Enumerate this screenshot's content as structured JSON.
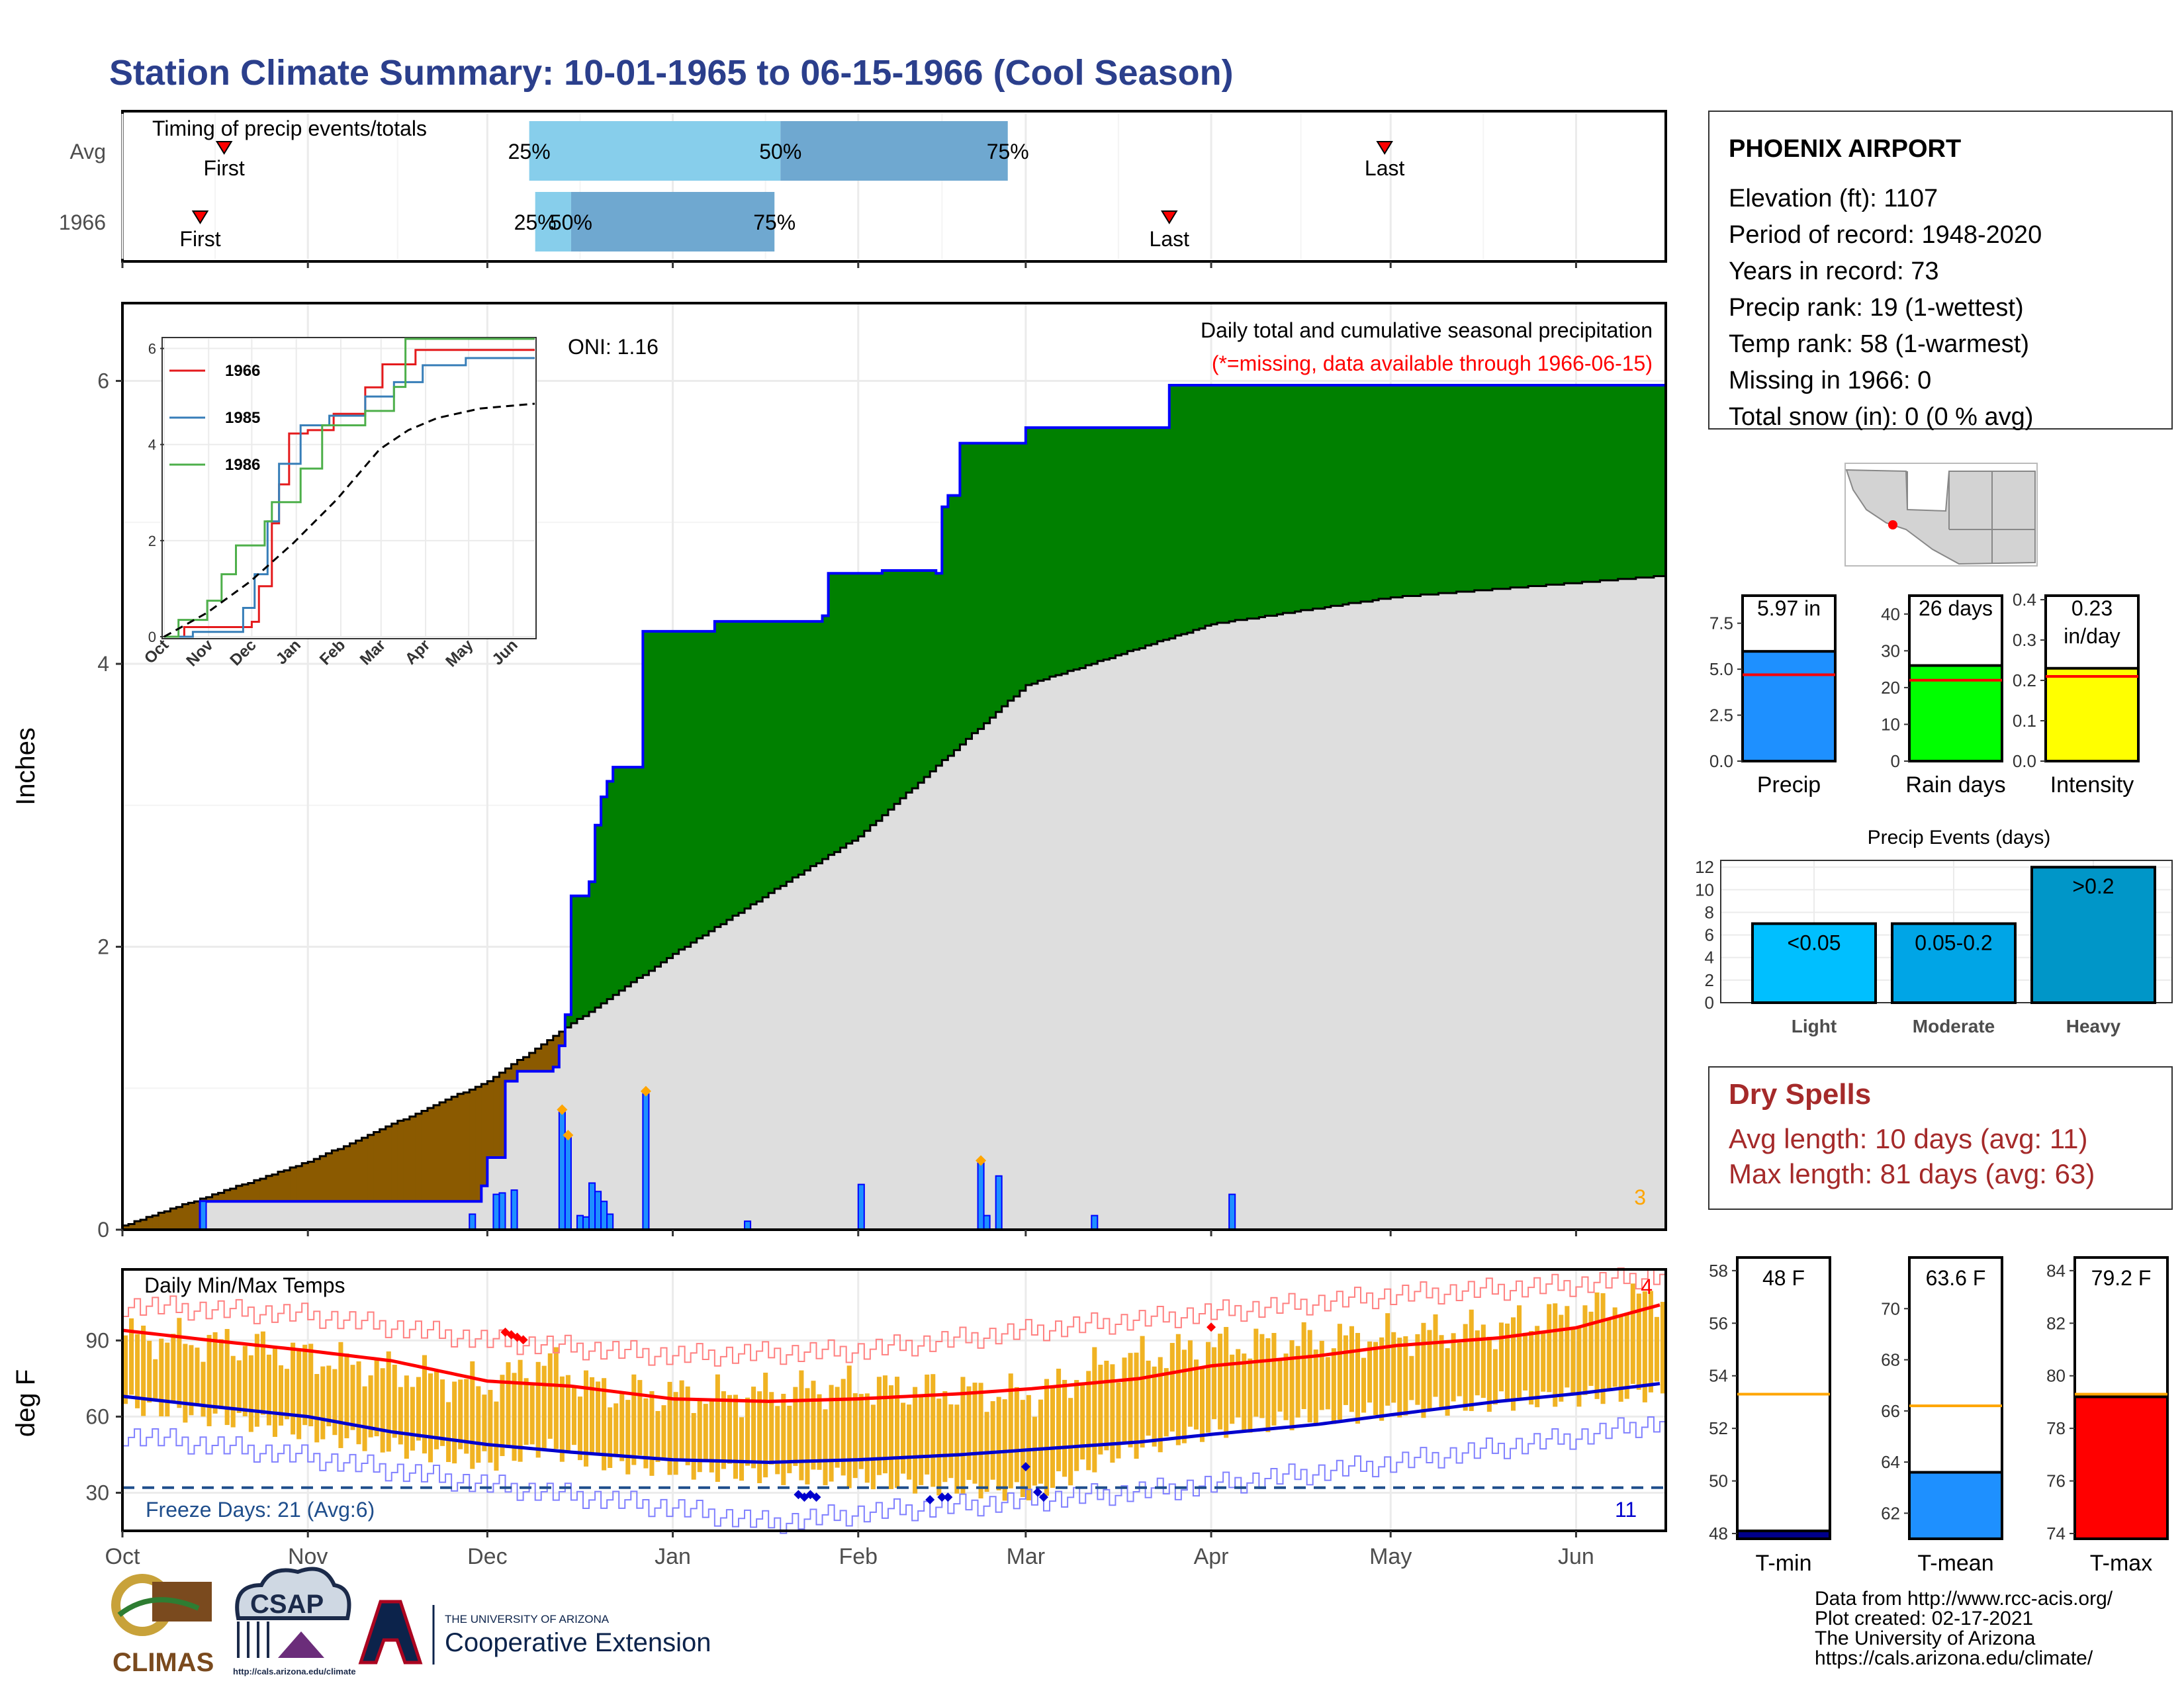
{
  "title": "Station Climate Summary: 10-01-1965 to 06-15-1966 (Cool Season)",
  "timing": {
    "heading": "Timing of precip events/totals",
    "row_labels": [
      "Avg",
      "1966"
    ],
    "first_label": "First",
    "last_label": "Last",
    "pct_labels": [
      "25%",
      "50%",
      "75%"
    ],
    "avg": {
      "first": "1965-10-18",
      "p25": "1965-12-08",
      "p50": "1966-01-19",
      "p75": "1966-02-26",
      "last": "1966-04-30"
    },
    "y1966": {
      "first": "1965-10-14",
      "p25": "1965-12-09",
      "p50": "1965-12-15",
      "p75": "1966-01-18",
      "last": "1966-03-25"
    }
  },
  "main": {
    "ylabel": "Inches",
    "oni": "ONI: 1.16",
    "note1": "Daily total and cumulative seasonal precipitation",
    "note2": "(*=missing, data available through 1966-06-15)",
    "corner_count": "3",
    "y_ticks": [
      "0",
      "2",
      "4",
      "6"
    ]
  },
  "inset": {
    "legend": [
      "1966",
      "1985",
      "1986"
    ],
    "colors": [
      "#e41a1c",
      "#377eb8",
      "#4daf4a"
    ],
    "months": [
      "Oct",
      "Nov",
      "Dec",
      "Jan",
      "Feb",
      "Mar",
      "Apr",
      "May",
      "Jun"
    ],
    "y_ticks": [
      "0",
      "2",
      "4",
      "6"
    ]
  },
  "temps": {
    "heading": "Daily Min/Max Temps",
    "ylabel": "deg F",
    "y_ticks": [
      "30",
      "60",
      "90"
    ],
    "freeze": "Freeze Days: 21 (Avg:6)",
    "max_count": "4",
    "min_count": "11",
    "months": [
      "Oct",
      "Nov",
      "Dec",
      "Jan",
      "Feb",
      "Mar",
      "Apr",
      "May",
      "Jun"
    ]
  },
  "station": {
    "name": "PHOENIX AIRPORT",
    "lines": [
      "Elevation (ft): 1107",
      "Period of record: 1948-2020",
      "Years in record: 73",
      "Precip rank: 19 (1-wettest)",
      "Temp rank: 58 (1-warmest)",
      "Missing in 1966: 0",
      "Total snow (in): 0 (0 % avg)"
    ]
  },
  "summary_bars": [
    {
      "label": "Precip",
      "value_text": "5.97 in",
      "value": 5.97,
      "avg": 4.7,
      "ymax": 9,
      "ticks": [
        "0.0",
        "2.5",
        "5.0",
        "7.5"
      ],
      "tick_vals": [
        0,
        2.5,
        5,
        7.5
      ],
      "color": "#1e90ff"
    },
    {
      "label": "Rain days",
      "value_text": "26 days",
      "value": 26,
      "avg": 22,
      "ymax": 45,
      "ticks": [
        "0",
        "10",
        "20",
        "30",
        "40"
      ],
      "tick_vals": [
        0,
        10,
        20,
        30,
        40
      ],
      "color": "#00ff00"
    },
    {
      "label": "Intensity",
      "value_text": "0.23",
      "value_text2": "in/day",
      "value": 0.23,
      "avg": 0.21,
      "ymax": 0.41,
      "ticks": [
        "0.0",
        "0.1",
        "0.2",
        "0.3",
        "0.4"
      ],
      "tick_vals": [
        0,
        0.1,
        0.2,
        0.3,
        0.4
      ],
      "color": "#ffff00"
    }
  ],
  "events": {
    "title": "Precip Events (days)",
    "categories": [
      "Light",
      "Moderate",
      "Heavy"
    ],
    "bar_labels": [
      "<0.05",
      "0.05-0.2",
      ">0.2"
    ],
    "values": [
      7,
      7,
      12
    ],
    "colors": [
      "#00bfff",
      "#00a5e6",
      "#0096c8"
    ],
    "ticks": [
      "0",
      "2",
      "4",
      "6",
      "8",
      "10",
      "12"
    ]
  },
  "dry": {
    "title": "Dry Spells",
    "avg_line": "Avg length: 10 days (avg: 11)",
    "max_line": "Max length: 81 days (avg: 63)"
  },
  "temp_bars": [
    {
      "label": "T-min",
      "value_text": "48 F",
      "value": 48.1,
      "avg": 53.3,
      "ymin": 47.8,
      "ymax": 58.5,
      "ticks": [
        "48",
        "50",
        "52",
        "54",
        "56",
        "58"
      ],
      "tick_vals": [
        48,
        50,
        52,
        54,
        56,
        58
      ],
      "color": "#00008b"
    },
    {
      "label": "T-mean",
      "value_text": "63.6 F",
      "value": 63.6,
      "avg": 66.2,
      "ymin": 61,
      "ymax": 72,
      "ticks": [
        "62",
        "64",
        "66",
        "68",
        "70"
      ],
      "tick_vals": [
        62,
        64,
        66,
        68,
        70
      ],
      "color": "#1e90ff"
    },
    {
      "label": "T-max",
      "value_text": "79.2 F",
      "value": 79.2,
      "avg": 79.3,
      "ymin": 73.8,
      "ymax": 84.5,
      "ticks": [
        "74",
        "76",
        "78",
        "80",
        "82",
        "84"
      ],
      "tick_vals": [
        74,
        76,
        78,
        80,
        82,
        84
      ],
      "color": "#ff0000"
    }
  ],
  "credits": [
    "Data from http://www.rcc-acis.org/",
    "Plot created: 02-17-2021",
    "The University of Arizona",
    "https://cals.arizona.edu/climate/"
  ],
  "logos": {
    "climas": "CLIMAS",
    "csap": "CSAP",
    "csap_url": "http://cals.arizona.edu/climate",
    "ua_small": "THE UNIVERSITY OF ARIZONA",
    "ua_big": "Cooperative Extension"
  },
  "chart_data": [
    {
      "type": "area",
      "title": "Daily total and cumulative seasonal precipitation",
      "ylabel": "Inches",
      "ylim": [
        0,
        6.5
      ],
      "x_range": [
        "1965-10-01",
        "1966-06-15"
      ],
      "cumulative_1966_steps": [
        [
          "1965-10-01",
          0.0
        ],
        [
          "1965-10-14",
          0.2
        ],
        [
          "1965-11-30",
          0.31
        ],
        [
          "1965-12-01",
          0.51
        ],
        [
          "1965-12-04",
          1.05
        ],
        [
          "1965-12-06",
          1.12
        ],
        [
          "1965-12-12",
          1.15
        ],
        [
          "1965-12-13",
          1.3
        ],
        [
          "1965-12-14",
          1.52
        ],
        [
          "1965-12-15",
          2.36
        ],
        [
          "1965-12-18",
          2.46
        ],
        [
          "1965-12-19",
          2.86
        ],
        [
          "1965-12-20",
          3.06
        ],
        [
          "1965-12-21",
          3.17
        ],
        [
          "1965-12-22",
          3.27
        ],
        [
          "1965-12-27",
          4.23
        ],
        [
          "1966-01-08",
          4.3
        ],
        [
          "1966-01-26",
          4.34
        ],
        [
          "1966-01-27",
          4.64
        ],
        [
          "1966-02-05",
          4.66
        ],
        [
          "1966-02-14",
          4.64
        ],
        [
          "1966-02-15",
          5.11
        ],
        [
          "1966-02-16",
          5.19
        ],
        [
          "1966-02-18",
          5.56
        ],
        [
          "1966-03-01",
          5.67
        ],
        [
          "1966-03-25",
          5.97
        ]
      ],
      "average_cumulative": [
        [
          "1965-10-01",
          0.03
        ],
        [
          "1965-11-01",
          0.48
        ],
        [
          "1965-12-01",
          1.05
        ],
        [
          "1966-01-01",
          1.95
        ],
        [
          "1966-02-01",
          2.78
        ],
        [
          "1966-03-01",
          3.85
        ],
        [
          "1966-04-01",
          4.28
        ],
        [
          "1966-05-01",
          4.47
        ],
        [
          "1966-06-15",
          4.62
        ]
      ],
      "daily_precip": [
        [
          "1965-10-14",
          0.2
        ],
        [
          "1965-11-28",
          0.11
        ],
        [
          "1965-12-02",
          0.25
        ],
        [
          "1965-12-03",
          0.26
        ],
        [
          "1965-12-05",
          0.28
        ],
        [
          "1965-12-13",
          0.83
        ],
        [
          "1965-12-14",
          0.65
        ],
        [
          "1965-12-16",
          0.1
        ],
        [
          "1965-12-17",
          0.09
        ],
        [
          "1965-12-18",
          0.33
        ],
        [
          "1965-12-19",
          0.27
        ],
        [
          "1965-12-20",
          0.2
        ],
        [
          "1965-12-21",
          0.11
        ],
        [
          "1965-12-27",
          0.96
        ],
        [
          "1966-01-13",
          0.06
        ],
        [
          "1966-02-01",
          0.32
        ],
        [
          "1966-02-21",
          0.47
        ],
        [
          "1966-02-22",
          0.1
        ],
        [
          "1966-02-24",
          0.38
        ],
        [
          "1966-03-12",
          0.1
        ],
        [
          "1966-04-04",
          0.25
        ]
      ]
    },
    {
      "type": "line",
      "title": "",
      "series": [
        {
          "name": "1966",
          "points": [
            [
              0,
              0
            ],
            [
              14,
              0.2
            ],
            [
              61,
              0.31
            ],
            [
              66,
              1.05
            ],
            [
              75,
              2.36
            ],
            [
              80,
              3.17
            ],
            [
              87,
              4.23
            ],
            [
              100,
              4.3
            ],
            [
              118,
              4.64
            ],
            [
              140,
              5.19
            ],
            [
              152,
              5.67
            ],
            [
              175,
              5.97
            ],
            [
              258,
              5.97
            ]
          ]
        },
        {
          "name": "1985",
          "points": [
            [
              0,
              0
            ],
            [
              20,
              0.1
            ],
            [
              55,
              0.6
            ],
            [
              63,
              1.3
            ],
            [
              72,
              2.4
            ],
            [
              80,
              3.6
            ],
            [
              95,
              4.4
            ],
            [
              115,
              4.6
            ],
            [
              140,
              5.0
            ],
            [
              160,
              5.3
            ],
            [
              180,
              5.65
            ],
            [
              210,
              5.8
            ],
            [
              258,
              5.8
            ]
          ]
        },
        {
          "name": "1986",
          "points": [
            [
              0,
              0
            ],
            [
              10,
              0.35
            ],
            [
              30,
              0.75
            ],
            [
              40,
              1.3
            ],
            [
              50,
              1.9
            ],
            [
              70,
              2.4
            ],
            [
              75,
              2.8
            ],
            [
              95,
              3.5
            ],
            [
              110,
              4.4
            ],
            [
              140,
              4.7
            ],
            [
              160,
              5.2
            ],
            [
              168,
              6.2
            ],
            [
              258,
              6.2
            ]
          ]
        },
        {
          "name": "",
          "points": [
            [
              0,
              0
            ],
            [
              30,
              0.5
            ],
            [
              60,
              1.15
            ],
            [
              90,
              1.95
            ],
            [
              120,
              2.85
            ],
            [
              150,
              3.9
            ],
            [
              170,
              4.3
            ],
            [
              190,
              4.55
            ],
            [
              220,
              4.75
            ],
            [
              258,
              4.85
            ]
          ]
        }
      ],
      "ylim": [
        0,
        6.2
      ],
      "x_labels": [
        "Oct",
        "Nov",
        "Dec",
        "Jan",
        "Feb",
        "Mar",
        "Apr",
        "May",
        "Jun"
      ]
    },
    {
      "type": "bar",
      "title": "Daily Min/Max Temps",
      "ylabel": "deg F",
      "ylim": [
        15,
        115
      ],
      "x_range": [
        "1965-10-01",
        "1966-06-15"
      ],
      "avg_max_curve": [
        [
          0,
          94
        ],
        [
          15,
          90
        ],
        [
          31,
          86
        ],
        [
          45,
          82
        ],
        [
          61,
          74
        ],
        [
          75,
          72
        ],
        [
          92,
          67
        ],
        [
          108,
          66
        ],
        [
          123,
          67
        ],
        [
          140,
          69
        ],
        [
          152,
          71
        ],
        [
          170,
          75
        ],
        [
          182,
          80
        ],
        [
          200,
          84
        ],
        [
          213,
          88
        ],
        [
          230,
          91
        ],
        [
          243,
          95
        ],
        [
          257,
          104
        ]
      ],
      "avg_min_curve": [
        [
          0,
          68
        ],
        [
          15,
          64
        ],
        [
          31,
          60
        ],
        [
          45,
          54
        ],
        [
          61,
          49
        ],
        [
          75,
          46
        ],
        [
          92,
          43
        ],
        [
          108,
          42
        ],
        [
          123,
          43
        ],
        [
          140,
          45
        ],
        [
          152,
          47
        ],
        [
          170,
          50
        ],
        [
          182,
          53
        ],
        [
          200,
          57
        ],
        [
          213,
          61
        ],
        [
          230,
          66
        ],
        [
          243,
          69
        ],
        [
          257,
          73
        ]
      ],
      "record_max_curve": [
        [
          0,
          104
        ],
        [
          31,
          100
        ],
        [
          61,
          90
        ],
        [
          92,
          84
        ],
        [
          123,
          86
        ],
        [
          152,
          94
        ],
        [
          182,
          101
        ],
        [
          213,
          108
        ],
        [
          243,
          112
        ],
        [
          257,
          116
        ]
      ],
      "record_min_curve": [
        [
          0,
          53
        ],
        [
          31,
          44
        ],
        [
          61,
          33
        ],
        [
          92,
          24
        ],
        [
          108,
          18
        ],
        [
          123,
          22
        ],
        [
          152,
          27
        ],
        [
          182,
          33
        ],
        [
          213,
          42
        ],
        [
          243,
          52
        ],
        [
          257,
          58
        ]
      ],
      "freeze_line": 32,
      "daily_envelope": {
        "max": [
          [
            0,
            92
          ],
          [
            20,
            88
          ],
          [
            40,
            80
          ],
          [
            61,
            72
          ],
          [
            70,
            82
          ],
          [
            80,
            70
          ],
          [
            100,
            68
          ],
          [
            120,
            72
          ],
          [
            140,
            70
          ],
          [
            152,
            68
          ],
          [
            165,
            82
          ],
          [
            182,
            88
          ],
          [
            200,
            90
          ],
          [
            230,
            95
          ],
          [
            257,
            108
          ]
        ],
        "min": [
          [
            0,
            65
          ],
          [
            20,
            58
          ],
          [
            40,
            50
          ],
          [
            61,
            42
          ],
          [
            70,
            48
          ],
          [
            80,
            42
          ],
          [
            100,
            38
          ],
          [
            120,
            36
          ],
          [
            140,
            32
          ],
          [
            152,
            30
          ],
          [
            165,
            45
          ],
          [
            182,
            55
          ],
          [
            200,
            60
          ],
          [
            230,
            66
          ],
          [
            257,
            70
          ]
        ]
      }
    },
    {
      "type": "bar",
      "categories": [
        "Precip",
        "Rain days",
        "Intensity"
      ],
      "values": [
        5.97,
        26,
        0.23
      ],
      "title": ""
    },
    {
      "type": "bar",
      "title": "Precip Events (days)",
      "categories": [
        "Light",
        "Moderate",
        "Heavy"
      ],
      "values": [
        7,
        7,
        12
      ],
      "ylim": [
        0,
        12.5
      ]
    },
    {
      "type": "bar",
      "categories": [
        "T-min",
        "T-mean",
        "T-max"
      ],
      "values": [
        48.1,
        63.6,
        79.2
      ],
      "title": ""
    }
  ]
}
